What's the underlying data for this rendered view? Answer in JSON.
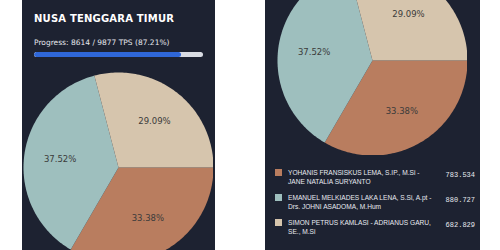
{
  "chart_data": {
    "type": "pie",
    "title": "NUSA TENGGARA TIMUR",
    "subtitle": "Progress: 8614 / 9877 TPS (87.21%)",
    "progress": {
      "done": 8614,
      "total": 9877
    },
    "categories": [
      "YOHANIS FRANSISKUS LEMA, S.IP., M.Si - JANE NATALIA SURYANTO",
      "EMANUEL MELKIADES LAKA LENA, S.Si, A.pt - Drs. JOHNI ASADOMA, M.Hum",
      "SIMON PETRUS KAMLASI - ADRIANUS GARU, SE., M.Si"
    ],
    "values": [
      33.38,
      37.52,
      29.09
    ],
    "value_labels": [
      "33.38%",
      "37.52%",
      "29.09%"
    ],
    "votes": [
      783534,
      880727,
      682829
    ],
    "vote_labels": [
      "783.534",
      "880.727",
      "682.829"
    ],
    "colors": [
      "#b97d5f",
      "#9ebfbe",
      "#d6c5ad"
    ],
    "data_labels": true,
    "legend": "bottom"
  }
}
